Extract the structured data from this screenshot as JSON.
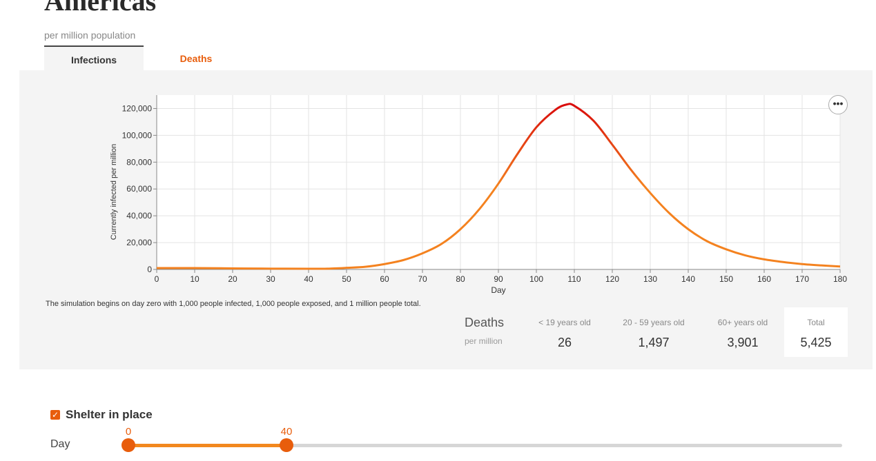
{
  "page": {
    "title": "Americas",
    "subtitle": "per million population"
  },
  "tabs": [
    {
      "label": "Infections",
      "active": true
    },
    {
      "label": "Deaths",
      "active": false
    }
  ],
  "chart_data": {
    "type": "line",
    "xlabel": "Day",
    "ylabel": "Currently infected per million",
    "xlim": [
      0,
      180
    ],
    "ylim": [
      0,
      130000
    ],
    "x_ticks": [
      0,
      10,
      20,
      30,
      40,
      50,
      60,
      70,
      80,
      90,
      100,
      110,
      120,
      130,
      140,
      150,
      160,
      170,
      180
    ],
    "x_tick_labels": [
      "0",
      "10",
      "20",
      "30",
      "40",
      "50",
      "60",
      "70",
      "80",
      "90",
      "100",
      "110",
      "120",
      "130",
      "140",
      "150",
      "160",
      "170",
      "180"
    ],
    "y_ticks": [
      0,
      20000,
      40000,
      60000,
      80000,
      100000,
      120000
    ],
    "y_tick_labels": [
      "0",
      "20,000",
      "40,000",
      "60,000",
      "80,000",
      "100,000",
      "120,000"
    ],
    "grid": true,
    "series": [
      {
        "x": [
          0,
          10,
          20,
          30,
          40,
          45,
          50,
          55,
          60,
          65,
          70,
          75,
          80,
          85,
          90,
          95,
          100,
          105,
          108,
          110,
          115,
          120,
          125,
          130,
          135,
          140,
          145,
          150,
          155,
          160,
          165,
          170,
          175,
          180
        ],
        "y": [
          1000,
          1000,
          800,
          600,
          500,
          600,
          1200,
          2000,
          4000,
          7000,
          12000,
          19000,
          30000,
          45000,
          64000,
          86000,
          106000,
          119000,
          123000,
          122000,
          111000,
          93000,
          74000,
          57000,
          42000,
          30000,
          21000,
          15000,
          10500,
          7500,
          5500,
          4000,
          3000,
          2200
        ]
      }
    ],
    "colors": {
      "low": "#f4821f",
      "high": "#d90b0b"
    }
  },
  "note": "The simulation begins on day zero with 1,000 people infected, 1,000 people exposed, and 1 million people total.",
  "deaths": {
    "title": "Deaths",
    "unit": "per million",
    "columns": [
      {
        "label": "< 19 years old",
        "value": "26"
      },
      {
        "label": "20 - 59 years old",
        "value": "1,497"
      },
      {
        "label": "60+ years old",
        "value": "3,901"
      },
      {
        "label": "Total",
        "value": "5,425"
      }
    ]
  },
  "controls": {
    "shelter": {
      "label": "Shelter in place",
      "checked": true
    },
    "day_label": "Day",
    "range_start": "0",
    "range_end": "40",
    "slider_min": 0,
    "slider_max": 180,
    "accent": "#e85d0c"
  },
  "more_icon": "more-icon"
}
